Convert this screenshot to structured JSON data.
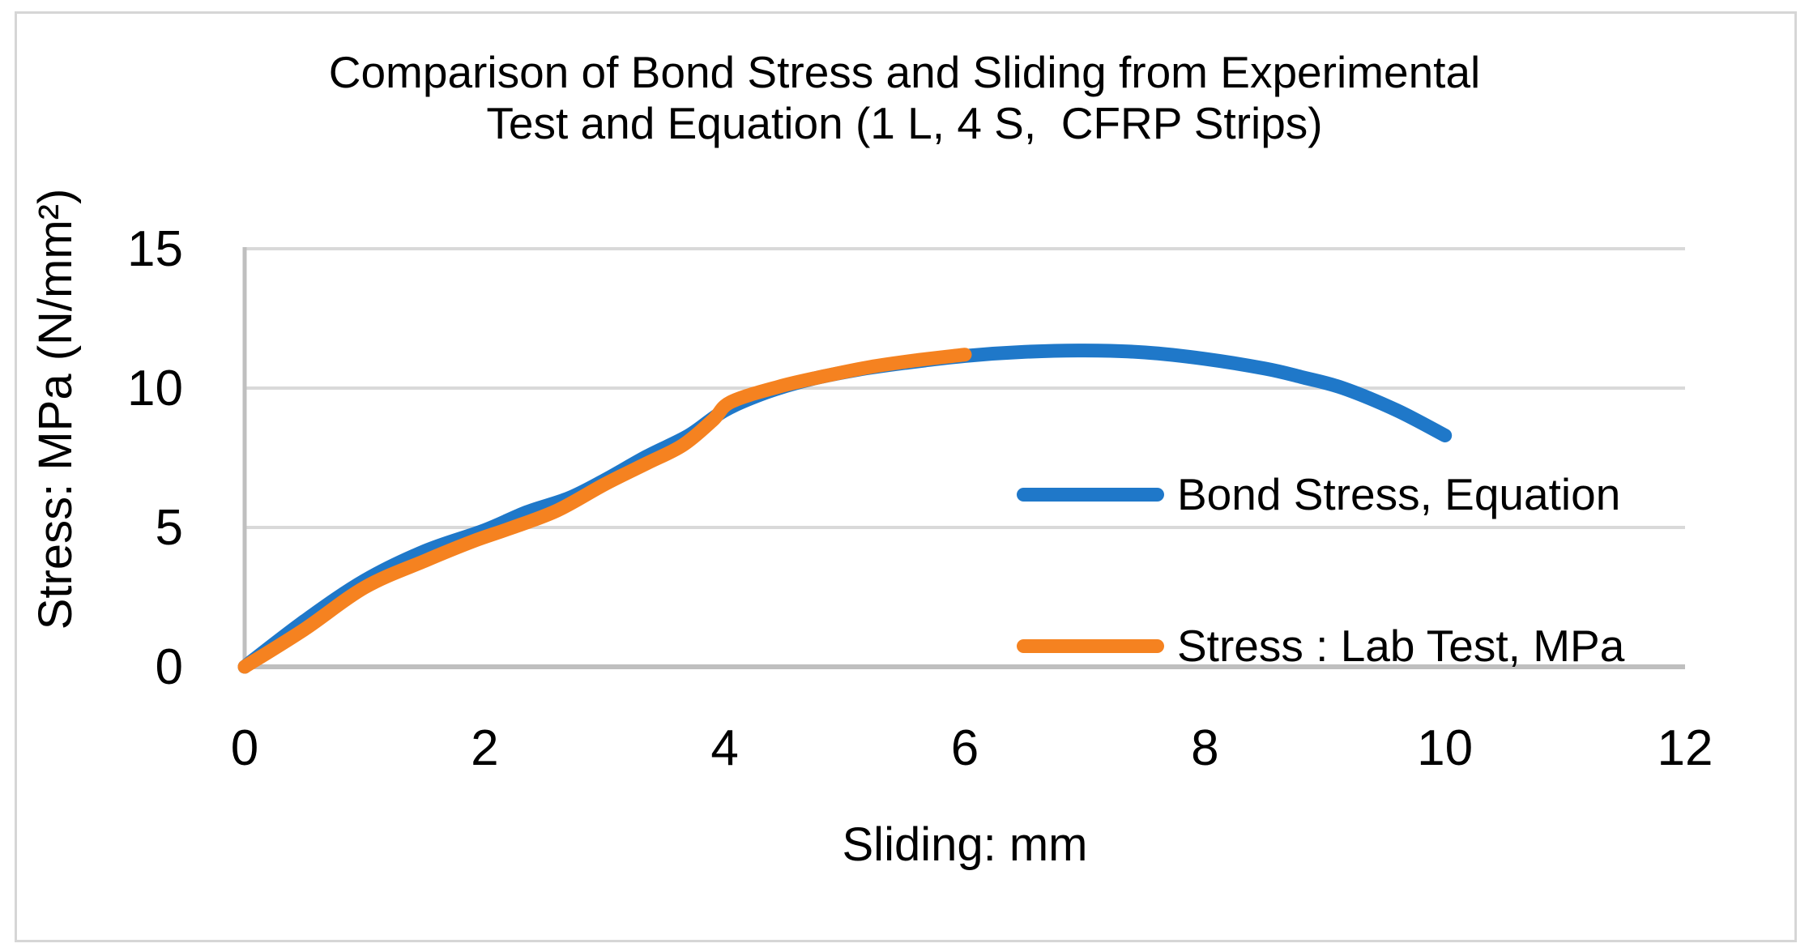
{
  "title": {
    "line1": "Comparison of Bond Stress and Sliding from Experimental",
    "line2": "Test and Equation (1 L, 4 S,  CFRP Strips)"
  },
  "colors": {
    "series_blue": "#1F78C9",
    "series_orange": "#F58220",
    "gridline": "#D9D9D9",
    "axis_line": "#BFBFBF",
    "text": "#000000",
    "border": "#D6D6D6"
  },
  "chart_data": {
    "type": "line",
    "title": "Comparison of Bond Stress and Sliding from Experimental Test and Equation (1 L, 4 S,  CFRP Strips)",
    "xlabel": "Sliding: mm",
    "ylabel": "Stress: MPa (N/mm²)",
    "xlim": [
      0,
      12
    ],
    "ylim": [
      0,
      15
    ],
    "x_ticks": [
      0,
      2,
      4,
      6,
      8,
      10,
      12
    ],
    "y_ticks": [
      0,
      5,
      10,
      15
    ],
    "grid": "horizontal",
    "legend_position": "center-right",
    "series": [
      {
        "name": "Bond Stress, Equation",
        "color": "#1F78C9",
        "points": [
          [
            0,
            0
          ],
          [
            0.5,
            1.65
          ],
          [
            1.0,
            3.1
          ],
          [
            1.5,
            4.15
          ],
          [
            2.0,
            4.9
          ],
          [
            2.35,
            5.55
          ],
          [
            2.7,
            6.05
          ],
          [
            3.0,
            6.7
          ],
          [
            3.35,
            7.55
          ],
          [
            3.7,
            8.3
          ],
          [
            4.0,
            9.2
          ],
          [
            4.35,
            9.85
          ],
          [
            4.7,
            10.3
          ],
          [
            5.1,
            10.65
          ],
          [
            5.5,
            10.9
          ],
          [
            6.0,
            11.15
          ],
          [
            6.5,
            11.3
          ],
          [
            7.0,
            11.35
          ],
          [
            7.5,
            11.28
          ],
          [
            8.0,
            11.05
          ],
          [
            8.5,
            10.7
          ],
          [
            8.8,
            10.4
          ],
          [
            9.15,
            10.0
          ],
          [
            9.6,
            9.2
          ],
          [
            10.0,
            8.3
          ]
        ]
      },
      {
        "name": "Stress : Lab Test, MPa",
        "color": "#F58220",
        "points": [
          [
            0,
            0
          ],
          [
            0.5,
            1.35
          ],
          [
            1.0,
            2.85
          ],
          [
            1.5,
            3.8
          ],
          [
            1.9,
            4.5
          ],
          [
            2.2,
            4.95
          ],
          [
            2.6,
            5.6
          ],
          [
            3.0,
            6.55
          ],
          [
            3.35,
            7.3
          ],
          [
            3.65,
            7.95
          ],
          [
            3.9,
            8.85
          ],
          [
            4.05,
            9.5
          ],
          [
            4.45,
            10.05
          ],
          [
            4.8,
            10.4
          ],
          [
            5.2,
            10.75
          ],
          [
            5.6,
            11.0
          ],
          [
            6.0,
            11.2
          ]
        ]
      }
    ]
  }
}
